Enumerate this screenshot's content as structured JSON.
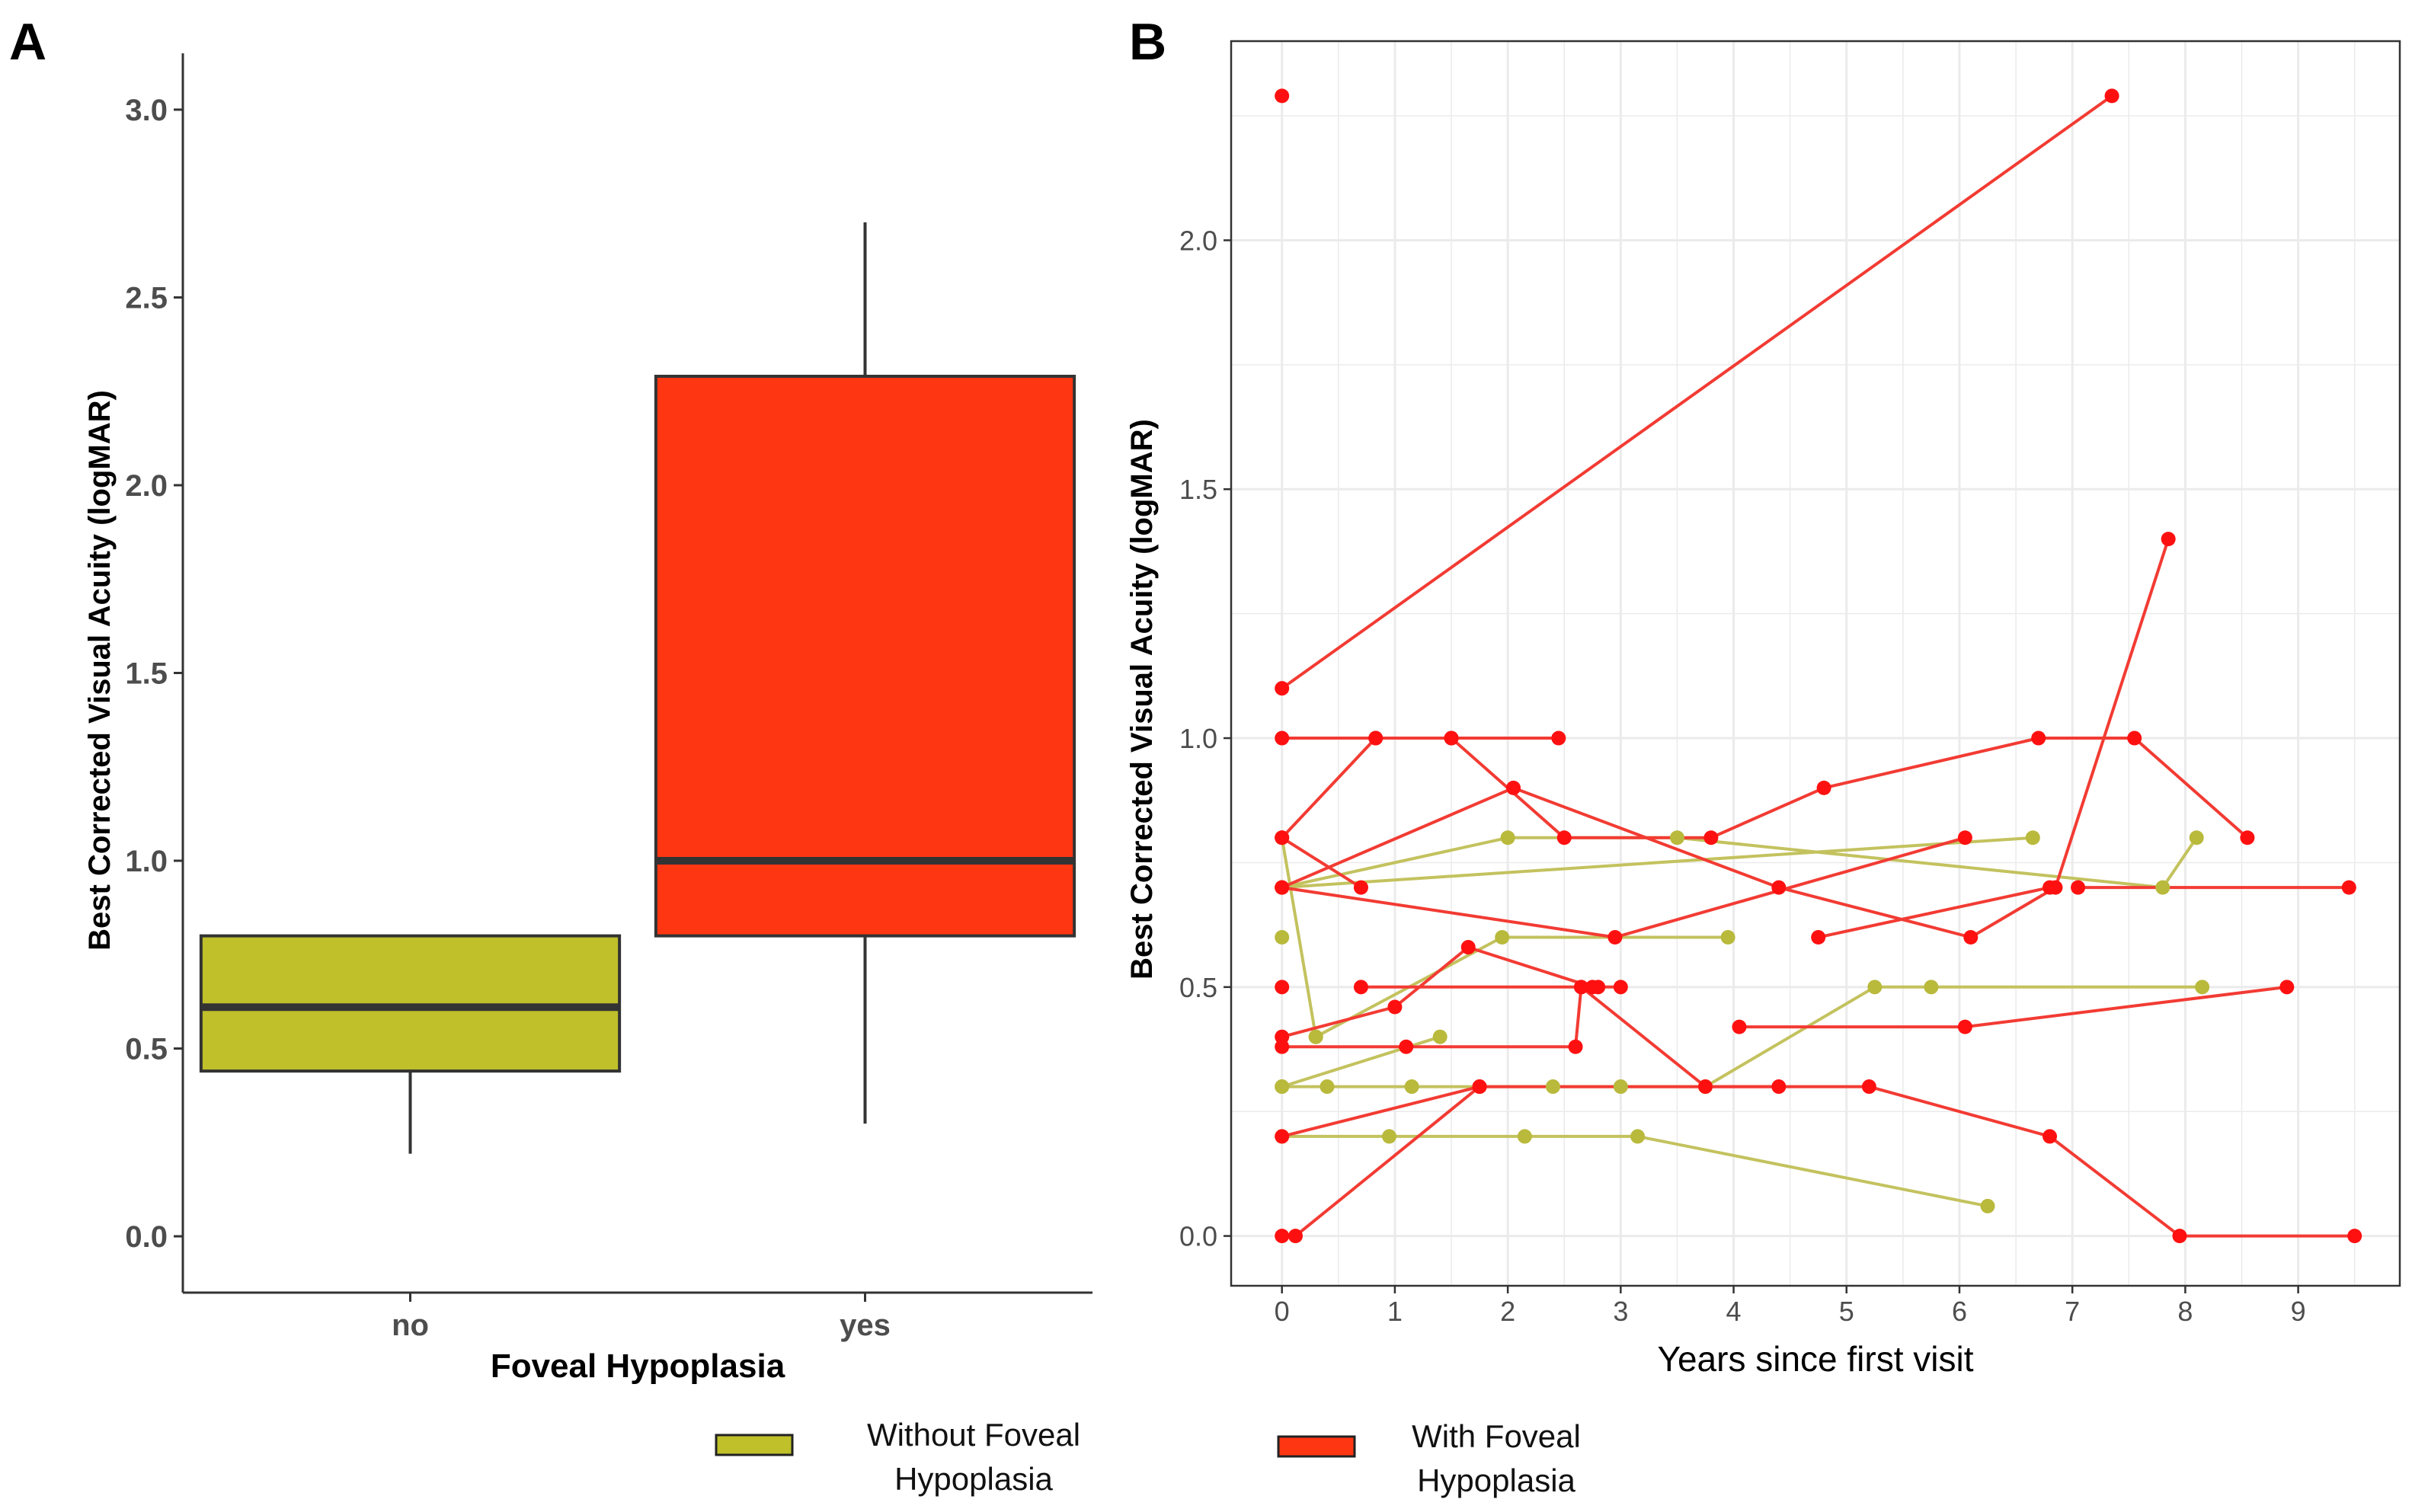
{
  "colors": {
    "without": "#bfc02a",
    "with": "#ff3612",
    "line_without": "#c3c25e",
    "line_with": "#f23b33",
    "pt_without": "#b9b93c",
    "pt_with": "#ff1010",
    "box_border": "#333333",
    "grid": "#ebebeb",
    "panel_border": "#333333"
  },
  "legend": {
    "without_label": [
      "Without Foveal",
      "Hypoplasia"
    ],
    "with_label": [
      "With Foveal",
      "Hypoplasia"
    ]
  },
  "chart_data": [
    {
      "panel": "A",
      "type": "box",
      "title": "",
      "xlabel": "Foveal Hypoplasia",
      "ylabel": "Best Corrected Visual Acuity (logMAR)",
      "categories": [
        "no",
        "yes"
      ],
      "ylim": [
        -0.15,
        3.15
      ],
      "yticks": [
        0.0,
        0.5,
        1.0,
        1.5,
        2.0,
        2.5,
        3.0
      ],
      "ytick_labels": [
        "0.0",
        "0.5",
        "1.0",
        "1.5",
        "2.0",
        "2.5",
        "3.0"
      ],
      "boxes": [
        {
          "category": "no",
          "group": "without",
          "min": 0.22,
          "q1": 0.44,
          "median": 0.61,
          "q3": 0.8,
          "max": 0.8
        },
        {
          "category": "yes",
          "group": "with",
          "min": 0.3,
          "q1": 0.8,
          "median": 1.0,
          "q3": 2.29,
          "max": 2.7
        }
      ]
    },
    {
      "panel": "B",
      "type": "line",
      "title": "",
      "xlabel": "Years since first visit",
      "ylabel": "Best Corrected Visual Acuity (logMAR)",
      "xlim": [
        -0.45,
        9.9
      ],
      "ylim": [
        -0.1,
        2.4
      ],
      "xticks": [
        0,
        1,
        2,
        3,
        4,
        5,
        6,
        7,
        8,
        9
      ],
      "xtick_labels": [
        "0",
        "1",
        "2",
        "3",
        "4",
        "5",
        "6",
        "7",
        "8",
        "9"
      ],
      "yticks": [
        0.0,
        0.5,
        1.0,
        1.5,
        2.0
      ],
      "ytick_labels": [
        "0.0",
        "0.5",
        "1.0",
        "1.5",
        "2.0"
      ],
      "series": [
        {
          "group": "with",
          "points": [
            [
              0,
              1.1
            ],
            [
              7.35,
              2.29
            ]
          ]
        },
        {
          "group": "with",
          "points": [
            [
              0,
              2.29
            ]
          ]
        },
        {
          "group": "with",
          "points": [
            [
              0,
              1.0
            ],
            [
              0.83,
              1.0
            ],
            [
              1.5,
              1.0
            ],
            [
              2.45,
              1.0
            ]
          ]
        },
        {
          "group": "with",
          "points": [
            [
              0,
              0.8
            ],
            [
              0.83,
              1.0
            ]
          ]
        },
        {
          "group": "with",
          "points": [
            [
              1.5,
              1.0
            ],
            [
              2.5,
              0.8
            ],
            [
              3.8,
              0.8
            ],
            [
              4.8,
              0.9
            ],
            [
              6.7,
              1.0
            ],
            [
              7.55,
              1.0
            ],
            [
              8.55,
              0.8
            ]
          ]
        },
        {
          "group": "with",
          "points": [
            [
              0,
              0.8
            ],
            [
              0.7,
              0.7
            ]
          ]
        },
        {
          "group": "with",
          "points": [
            [
              0,
              0.7
            ],
            [
              2.05,
              0.9
            ],
            [
              4.4,
              0.7
            ],
            [
              6.1,
              0.6
            ],
            [
              6.85,
              0.7
            ],
            [
              7.85,
              1.4
            ]
          ]
        },
        {
          "group": "with",
          "points": [
            [
              0,
              0.7
            ],
            [
              2.95,
              0.6
            ],
            [
              6.05,
              0.8
            ]
          ]
        },
        {
          "group": "with",
          "points": [
            [
              4.75,
              0.6
            ],
            [
              6.8,
              0.7
            ]
          ]
        },
        {
          "group": "with",
          "points": [
            [
              7.05,
              0.7
            ],
            [
              9.45,
              0.7
            ]
          ]
        },
        {
          "group": "with",
          "points": [
            [
              0.7,
              0.5
            ],
            [
              2.65,
              0.5
            ],
            [
              3.75,
              0.3
            ],
            [
              5.2,
              0.3
            ],
            [
              6.8,
              0.2
            ],
            [
              7.95,
              0.0
            ],
            [
              9.5,
              0.0
            ]
          ]
        },
        {
          "group": "with",
          "points": [
            [
              0,
              0.5
            ]
          ]
        },
        {
          "group": "with",
          "points": [
            [
              0,
              0.4
            ],
            [
              1.0,
              0.46
            ],
            [
              1.65,
              0.58
            ],
            [
              2.75,
              0.5
            ],
            [
              3.0,
              0.5
            ]
          ]
        },
        {
          "group": "with",
          "points": [
            [
              0,
              0.38
            ],
            [
              1.1,
              0.38
            ],
            [
              2.6,
              0.38
            ],
            [
              2.65,
              0.5
            ],
            [
              2.8,
              0.5
            ]
          ]
        },
        {
          "group": "with",
          "points": [
            [
              4.05,
              0.42
            ],
            [
              6.05,
              0.42
            ],
            [
              8.9,
              0.5
            ]
          ]
        },
        {
          "group": "with",
          "points": [
            [
              0,
              0.2
            ],
            [
              1.75,
              0.3
            ],
            [
              4.4,
              0.3
            ]
          ]
        },
        {
          "group": "with",
          "points": [
            [
              0,
              0.0
            ],
            [
              0.12,
              0.0
            ],
            [
              1.75,
              0.3
            ]
          ]
        },
        {
          "group": "without",
          "points": [
            [
              0,
              0.8
            ],
            [
              0.3,
              0.4
            ]
          ]
        },
        {
          "group": "without",
          "points": [
            [
              0,
              0.7
            ],
            [
              2.0,
              0.8
            ],
            [
              3.5,
              0.8
            ],
            [
              7.8,
              0.7
            ],
            [
              8.1,
              0.8
            ]
          ]
        },
        {
          "group": "without",
          "points": [
            [
              0,
              0.7
            ],
            [
              6.65,
              0.8
            ]
          ]
        },
        {
          "group": "without",
          "points": [
            [
              0,
              0.6
            ]
          ]
        },
        {
          "group": "without",
          "points": [
            [
              0.3,
              0.4
            ],
            [
              1.95,
              0.6
            ],
            [
              3.95,
              0.6
            ]
          ]
        },
        {
          "group": "without",
          "points": [
            [
              0,
              0.3
            ],
            [
              0.4,
              0.3
            ],
            [
              1.15,
              0.3
            ],
            [
              2.4,
              0.3
            ],
            [
              3.0,
              0.3
            ],
            [
              3.75,
              0.3
            ],
            [
              5.25,
              0.5
            ],
            [
              5.75,
              0.5
            ],
            [
              8.15,
              0.5
            ]
          ]
        },
        {
          "group": "without",
          "points": [
            [
              0,
              0.3
            ],
            [
              1.4,
              0.4
            ]
          ]
        },
        {
          "group": "without",
          "points": [
            [
              0,
              0.2
            ],
            [
              0.95,
              0.2
            ],
            [
              2.15,
              0.2
            ],
            [
              3.15,
              0.2
            ],
            [
              6.25,
              0.06
            ]
          ]
        }
      ]
    }
  ],
  "panel_labels": {
    "a": "A",
    "b": "B"
  }
}
